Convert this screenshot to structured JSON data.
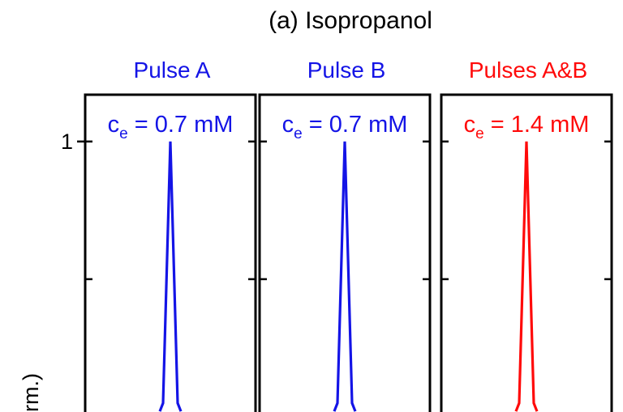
{
  "figure": {
    "title": "(a) Isopropanol",
    "ylabel_visible": "rm.)"
  },
  "colors": {
    "pulse_a": "#1414e6",
    "pulse_b": "#1414e6",
    "pulses_ab": "#ff0a0a",
    "axis": "#000000"
  },
  "chart_data": [
    {
      "type": "line",
      "title": "Pulse A",
      "annotation": {
        "symbol": "c",
        "subscript": "e",
        "rest": " = 0.7 mM"
      },
      "ylabel": "",
      "yticks": [
        1
      ],
      "ytick_labels": [
        "1"
      ],
      "ylim": [
        -0.15,
        1.17
      ],
      "xlim": [
        -1,
        1
      ],
      "grid": false,
      "series": [
        {
          "color": "#1414e6",
          "x": [
            -0.1,
            0,
            0.1
          ],
          "y": [
            0.0,
            1.0,
            0.0
          ]
        }
      ]
    },
    {
      "type": "line",
      "title": "Pulse B",
      "annotation": {
        "symbol": "c",
        "subscript": "e",
        "rest": " = 0.7 mM"
      },
      "ylim": [
        -0.15,
        1.17
      ],
      "xlim": [
        -1,
        1
      ],
      "grid": false,
      "series": [
        {
          "color": "#1414e6",
          "x": [
            -0.1,
            0,
            0.1
          ],
          "y": [
            0.0,
            1.0,
            0.0
          ]
        }
      ]
    },
    {
      "type": "line",
      "title": "Pulses A&B",
      "annotation": {
        "symbol": "c",
        "subscript": "e",
        "rest": " = 1.4 mM"
      },
      "ylim": [
        -0.15,
        1.17
      ],
      "xlim": [
        -1,
        1
      ],
      "grid": false,
      "series": [
        {
          "color": "#ff0a0a",
          "x": [
            -0.1,
            0,
            0.1
          ],
          "y": [
            0.0,
            1.0,
            0.0
          ]
        }
      ]
    }
  ]
}
